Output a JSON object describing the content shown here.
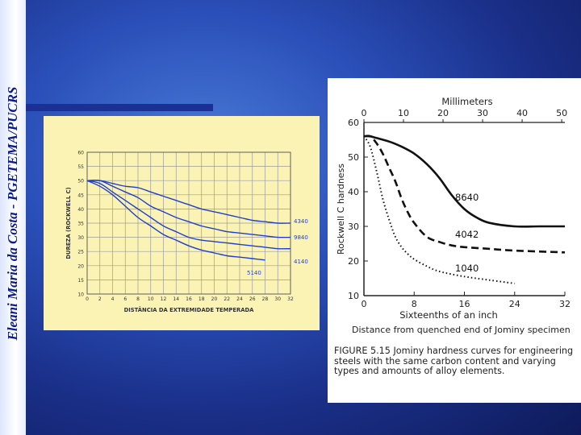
{
  "slide": {
    "side_title": "Eleani Maria da Costa - PGETEMA/PUCRS"
  },
  "chart_data": [
    {
      "type": "line",
      "xlabel": "DISTÂNCIA DA EXTREMIDADE TEMPERADA",
      "ylabel": "DUREZA (ROCKWELL C)",
      "xlim": [
        0,
        32
      ],
      "ylim": [
        10,
        60
      ],
      "x_ticks": [
        0,
        2,
        4,
        6,
        8,
        10,
        12,
        14,
        16,
        18,
        20,
        22,
        24,
        26,
        28,
        30,
        32
      ],
      "y_ticks": [
        10,
        15,
        20,
        25,
        30,
        35,
        40,
        45,
        50,
        55,
        60
      ],
      "grid": true,
      "colors": {
        "curves": "#1f3fd0",
        "grid": "#9a9aa0",
        "background": "#fbf3b3"
      },
      "series": [
        {
          "name": "4340",
          "x": [
            0,
            2,
            4,
            6,
            8,
            10,
            12,
            14,
            16,
            18,
            20,
            22,
            24,
            26,
            28,
            30,
            32
          ],
          "y": [
            50,
            50,
            49,
            48,
            47.5,
            46,
            44.5,
            43,
            41.5,
            40,
            39,
            38,
            37,
            36,
            35.5,
            35,
            35
          ]
        },
        {
          "name": "9840",
          "x": [
            0,
            2,
            4,
            6,
            8,
            10,
            12,
            14,
            16,
            18,
            20,
            22,
            24,
            26,
            28,
            30,
            32
          ],
          "y": [
            50,
            50,
            48,
            46,
            44,
            41,
            39,
            37,
            35.5,
            34,
            33,
            32,
            31.5,
            31,
            30.5,
            30,
            30
          ]
        },
        {
          "name": "4140",
          "x": [
            0,
            2,
            4,
            6,
            8,
            10,
            12,
            14,
            16,
            18,
            20,
            22,
            24,
            26,
            28,
            30,
            32
          ],
          "y": [
            50,
            49,
            46,
            43,
            40,
            37,
            34,
            32,
            30,
            29,
            28.5,
            28,
            27.5,
            27,
            26.5,
            26,
            26
          ]
        },
        {
          "name": "5140",
          "x": [
            0,
            2,
            4,
            6,
            8,
            10,
            12,
            14,
            16,
            18,
            20,
            22,
            24,
            26,
            28
          ],
          "y": [
            50,
            48,
            45,
            41,
            37,
            34,
            31,
            29,
            27,
            25.5,
            24.5,
            23.5,
            23,
            22.5,
            22
          ]
        }
      ]
    },
    {
      "type": "line",
      "top_axis_label": "Millimeters",
      "top_ticks": [
        0,
        10,
        20,
        30,
        40,
        50
      ],
      "xlabel": "Sixteenths of an inch",
      "xlabel2": "Distance from quenched end of Jominy specimen",
      "ylabel": "Rockwell C hardness",
      "xlim": [
        0,
        32
      ],
      "ylim": [
        10,
        60
      ],
      "x_ticks": [
        0,
        8,
        16,
        24,
        32
      ],
      "y_ticks": [
        10,
        20,
        30,
        40,
        50,
        60
      ],
      "series": [
        {
          "name": "8640",
          "style": "solid",
          "x": [
            0,
            1,
            2,
            4,
            6,
            8,
            10,
            12,
            14,
            16,
            18,
            20,
            24,
            28,
            32
          ],
          "y": [
            56,
            56,
            55.5,
            54.5,
            53,
            51,
            48,
            44,
            39,
            35,
            32.5,
            31,
            30,
            30,
            30
          ]
        },
        {
          "name": "4042",
          "style": "dashed",
          "x": [
            0,
            1,
            2,
            3,
            4,
            5,
            6,
            7,
            8,
            10,
            12,
            14,
            16,
            20,
            24,
            32
          ],
          "y": [
            56,
            56,
            54,
            51,
            47,
            43,
            38,
            34,
            31,
            27,
            25.5,
            24.5,
            24,
            23.5,
            23,
            22.5
          ]
        },
        {
          "name": "1040",
          "style": "dotted",
          "x": [
            0,
            1,
            2,
            3,
            4,
            5,
            6,
            7,
            8,
            10,
            12,
            16,
            20,
            24
          ],
          "y": [
            56,
            53,
            46,
            38,
            32,
            27,
            24,
            22,
            20.5,
            18.5,
            17,
            15.5,
            14.5,
            13.5
          ]
        }
      ],
      "caption": "FIGURE 5.15   Jominy hardness curves for engineering steels with the same carbon content and varying types and amounts of alloy elements."
    }
  ]
}
